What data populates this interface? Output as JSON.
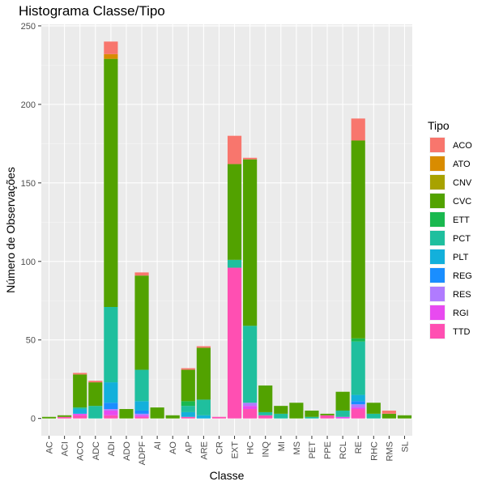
{
  "chart_data": {
    "type": "bar",
    "stacked": true,
    "title": "Histograma Classe/Tipo",
    "xlabel": "Classe",
    "ylabel": "Número de Observações",
    "ylim": [
      -11,
      251
    ],
    "yticks": [
      0,
      50,
      100,
      150,
      200,
      250
    ],
    "grid": true,
    "legend_title": "Tipo",
    "legend_position": "right",
    "categories": [
      "AC",
      "ACI",
      "ACO",
      "ADC",
      "ADI",
      "ADO",
      "ADPF",
      "AI",
      "AO",
      "AP",
      "ARE",
      "CR",
      "EXT",
      "HC",
      "INQ",
      "MI",
      "MS",
      "PET",
      "PPE",
      "RCL",
      "RE",
      "RHC",
      "RMS",
      "SL"
    ],
    "series": [
      {
        "name": "TTD",
        "color": "#FF4FB2",
        "values": [
          0,
          1,
          2,
          0,
          2,
          0,
          1,
          0,
          0,
          1,
          0,
          1,
          96,
          6,
          2,
          0,
          0,
          0,
          2,
          0,
          6,
          0,
          0,
          0
        ]
      },
      {
        "name": "RGI",
        "color": "#E84AF0",
        "values": [
          0,
          0,
          1,
          0,
          3,
          0,
          1,
          0,
          0,
          0,
          0,
          0,
          0,
          2,
          0,
          0,
          0,
          0,
          0,
          1,
          1,
          0,
          0,
          0
        ]
      },
      {
        "name": "RES",
        "color": "#B07BFF",
        "values": [
          0,
          0,
          0,
          0,
          1,
          0,
          1,
          0,
          0,
          0,
          0,
          0,
          0,
          2,
          0,
          0,
          0,
          0,
          0,
          0,
          2,
          0,
          0,
          0
        ]
      },
      {
        "name": "REG",
        "color": "#1A8EFF",
        "values": [
          0,
          0,
          0,
          0,
          4,
          0,
          2,
          0,
          0,
          0,
          0,
          0,
          0,
          0,
          0,
          0,
          0,
          0,
          0,
          0,
          2,
          0,
          0,
          0
        ]
      },
      {
        "name": "PLT",
        "color": "#13B0DB",
        "values": [
          0,
          0,
          3,
          0,
          13,
          0,
          6,
          0,
          0,
          3,
          2,
          0,
          0,
          0,
          0,
          0,
          0,
          0,
          0,
          0,
          4,
          0,
          0,
          0
        ]
      },
      {
        "name": "PCT",
        "color": "#1FBF9E",
        "values": [
          0,
          0,
          1,
          8,
          48,
          0,
          20,
          0,
          0,
          4,
          10,
          0,
          5,
          49,
          2,
          3,
          0,
          1,
          0,
          4,
          34,
          3,
          0,
          0
        ]
      },
      {
        "name": "ETT",
        "color": "#1AB84F",
        "values": [
          0,
          0,
          0,
          0,
          0,
          0,
          0,
          0,
          0,
          3,
          0,
          0,
          0,
          0,
          0,
          0,
          0,
          0,
          0,
          0,
          2,
          0,
          0,
          0
        ]
      },
      {
        "name": "CVC",
        "color": "#52A200",
        "values": [
          1,
          1,
          21,
          15,
          158,
          6,
          60,
          7,
          2,
          20,
          33,
          0,
          61,
          106,
          17,
          5,
          10,
          4,
          1,
          12,
          126,
          7,
          3,
          2
        ]
      },
      {
        "name": "CNV",
        "color": "#A8A200",
        "values": [
          0,
          0,
          0,
          0,
          0,
          0,
          0,
          0,
          0,
          0,
          0,
          0,
          0,
          0,
          0,
          0,
          0,
          0,
          0,
          0,
          0,
          0,
          0,
          0
        ]
      },
      {
        "name": "ATO",
        "color": "#D98C00",
        "values": [
          0,
          0,
          0,
          0,
          3,
          0,
          0,
          0,
          0,
          0,
          0,
          0,
          0,
          0,
          0,
          0,
          0,
          0,
          0,
          0,
          0,
          0,
          0,
          0
        ]
      },
      {
        "name": "ACO",
        "color": "#F8766D",
        "values": [
          0,
          0,
          1,
          1,
          8,
          0,
          2,
          0,
          0,
          1,
          1,
          0,
          18,
          1,
          0,
          0,
          0,
          0,
          0,
          0,
          14,
          0,
          2,
          0
        ]
      }
    ],
    "legend_order": [
      "ACO",
      "ATO",
      "CNV",
      "CVC",
      "ETT",
      "PCT",
      "PLT",
      "REG",
      "RES",
      "RGI",
      "TTD"
    ]
  }
}
